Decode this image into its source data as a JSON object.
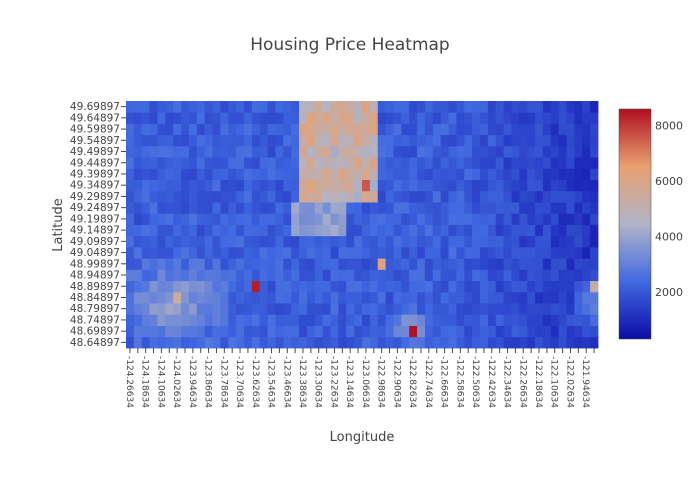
{
  "chart_data": {
    "type": "heatmap",
    "title": "Housing Price Heatmap",
    "xlabel": "Longitude",
    "ylabel": "Latitude",
    "x_start": -124.26634,
    "x_step": 0.04,
    "x_count": 60,
    "x_tick_every": 2,
    "y": [
      48.64897,
      48.69897,
      48.74897,
      48.79897,
      48.84897,
      48.89897,
      48.94897,
      48.99897,
      49.04897,
      49.09897,
      49.14897,
      49.19897,
      49.24897,
      49.29897,
      49.34897,
      49.39897,
      49.44897,
      49.49897,
      49.54897,
      49.59897,
      49.64897,
      49.69897
    ],
    "zlim": [
      300,
      8600
    ],
    "colorbar_ticks": [
      2000,
      4000,
      6000,
      8000
    ],
    "colorscale": [
      "#0c0ca8",
      "#4169e1",
      "#b0b4c8",
      "#e8a070",
      "#b01020"
    ],
    "hotspots": [
      {
        "x": -123.64634,
        "y": 48.89897,
        "v": 8400
      },
      {
        "x": -123.06634,
        "y": 49.34897,
        "v": 7600
      },
      {
        "x": -122.80634,
        "y": 48.71897,
        "v": 8600
      },
      {
        "x": -123.00634,
        "y": 48.98897,
        "v": 6200
      },
      {
        "x": -123.36634,
        "y": 49.33897,
        "v": 6300
      },
      {
        "x": -123.10634,
        "y": 49.42897,
        "v": 6000
      },
      {
        "x": -124.02634,
        "y": 48.86897,
        "v": 5400
      },
      {
        "x": -121.90634,
        "y": 48.89897,
        "v": 5200
      }
    ]
  }
}
